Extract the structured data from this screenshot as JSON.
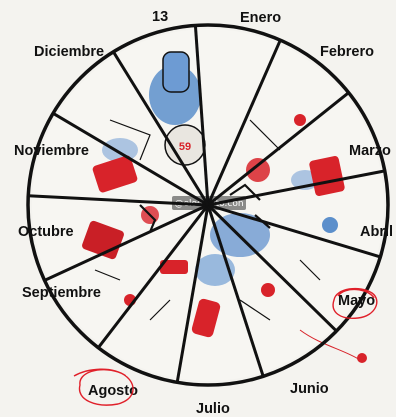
{
  "wheel": {
    "sectors": [
      {
        "label": "13"
      },
      {
        "label": "Enero"
      },
      {
        "label": "Febrero"
      },
      {
        "label": "Marzo"
      },
      {
        "label": "Abril"
      },
      {
        "label": "Mayo"
      },
      {
        "label": "Junio"
      },
      {
        "label": "Julio"
      },
      {
        "label": "Agosto"
      },
      {
        "label": "Septiembre"
      },
      {
        "label": "Octubre"
      },
      {
        "label": "Noviembre"
      },
      {
        "label": "Diciembre"
      }
    ],
    "watermark": "@elooculto.con",
    "center_number": "59"
  },
  "colors": {
    "background": "#f4f3ef",
    "outline": "#111111",
    "accent_red": "#d8232a",
    "accent_blue": "#4a7fc1",
    "annotation_red": "#e0202a"
  }
}
